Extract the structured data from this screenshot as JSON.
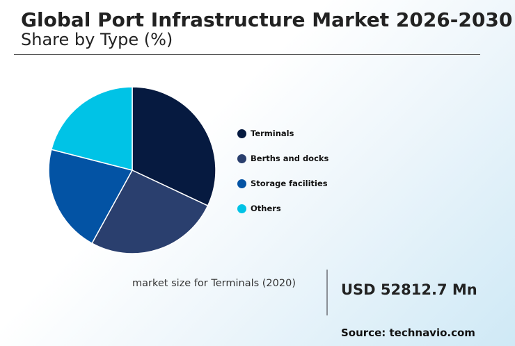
{
  "header": {
    "title": "Global Port Infrastructure Market 2026-2030",
    "subtitle": "Share by Type (%)"
  },
  "chart_data": {
    "type": "pie",
    "series": [
      {
        "name": "Terminals",
        "value": 32,
        "color": "#061a40"
      },
      {
        "name": "Berths and docks",
        "value": 26,
        "color": "#2a3f6e"
      },
      {
        "name": "Storage facilities",
        "value": 21,
        "color": "#0353a4"
      },
      {
        "name": "Others",
        "value": 21,
        "color": "#00c3e6"
      }
    ],
    "start_angle_deg": 0,
    "direction": "clockwise",
    "legend_position": "right"
  },
  "stat": {
    "caption": "market size for Terminals (2020)",
    "value": "USD 52812.7 Mn"
  },
  "footer": {
    "source": "Source: technavio.com"
  }
}
